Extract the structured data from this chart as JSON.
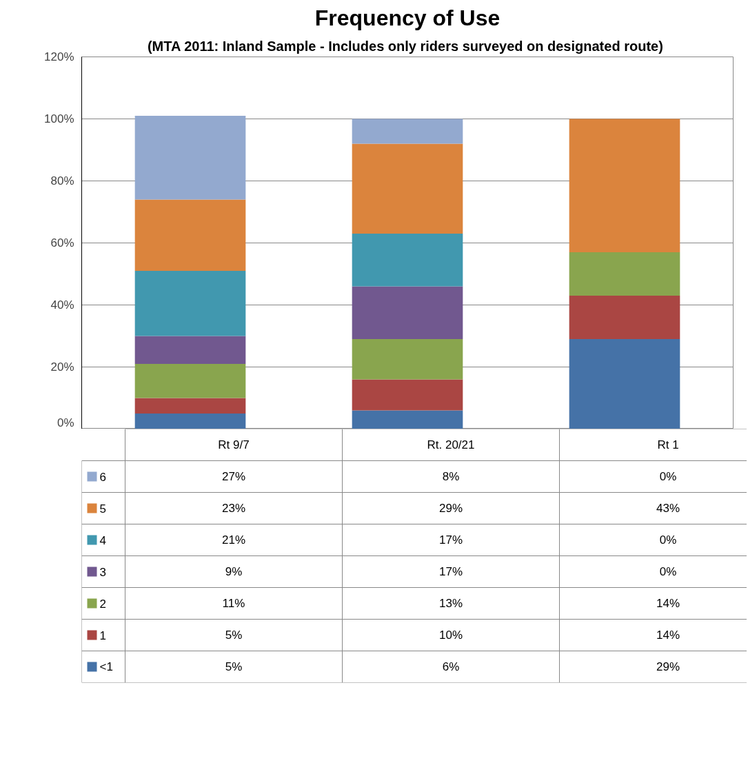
{
  "chart_data": {
    "type": "bar",
    "stacked": true,
    "title": "Frequency of Use",
    "subtitle": "(MTA 2011: Inland Sample -  Includes only riders surveyed on designated route)",
    "categories": [
      "Rt 9/7",
      "Rt. 20/21",
      "Rt 1"
    ],
    "series": [
      {
        "name": "<1",
        "color": "#4572a7",
        "values": [
          5,
          6,
          29
        ],
        "value_labels": [
          "5%",
          "6%",
          "29%"
        ]
      },
      {
        "name": "1",
        "color": "#aa4643",
        "values": [
          5,
          10,
          14
        ],
        "value_labels": [
          "5%",
          "10%",
          "14%"
        ]
      },
      {
        "name": "2",
        "color": "#89a54e",
        "values": [
          11,
          13,
          14
        ],
        "value_labels": [
          "11%",
          "13%",
          "14%"
        ]
      },
      {
        "name": "3",
        "color": "#71588f",
        "values": [
          9,
          17,
          0
        ],
        "value_labels": [
          "9%",
          "17%",
          "0%"
        ]
      },
      {
        "name": "4",
        "color": "#4198af",
        "values": [
          21,
          17,
          0
        ],
        "value_labels": [
          "21%",
          "17%",
          "0%"
        ]
      },
      {
        "name": "5",
        "color": "#db843d",
        "values": [
          23,
          29,
          43
        ],
        "value_labels": [
          "23%",
          "29%",
          "43%"
        ]
      },
      {
        "name": "6",
        "color": "#93a9cf",
        "values": [
          27,
          8,
          0
        ],
        "value_labels": [
          "27%",
          "8%",
          "0%"
        ]
      }
    ],
    "ylim": [
      0,
      120
    ],
    "yticks": [
      {
        "value": 0,
        "label": "0%"
      },
      {
        "value": 20,
        "label": "20%"
      },
      {
        "value": 40,
        "label": "40%"
      },
      {
        "value": 60,
        "label": "60%"
      },
      {
        "value": 80,
        "label": "80%"
      },
      {
        "value": 100,
        "label": "100%"
      },
      {
        "value": 120,
        "label": "120%"
      }
    ],
    "grid": "y",
    "legend": "bottom"
  }
}
